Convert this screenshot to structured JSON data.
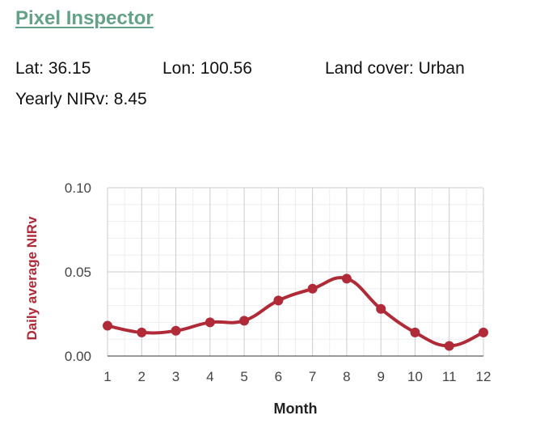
{
  "app": {
    "title": "Pixel Inspector"
  },
  "info": {
    "lat_label": "Lat: 36.15",
    "lon_label": "Lon: 100.56",
    "land_cover_label": "Land cover: Urban",
    "yearly_nirv_label": "Yearly NIRv: 8.45"
  },
  "chart_data": {
    "type": "line",
    "title": "",
    "xlabel": "Month",
    "ylabel": "Daily average NIRv",
    "x": [
      1,
      2,
      3,
      4,
      5,
      6,
      7,
      8,
      9,
      10,
      11,
      12
    ],
    "series": [
      {
        "name": "Daily average NIRv",
        "values": [
          0.018,
          0.014,
          0.015,
          0.02,
          0.021,
          0.033,
          0.04,
          0.046,
          0.028,
          0.014,
          0.006,
          0.014
        ]
      }
    ],
    "xlim": [
      1,
      12
    ],
    "ylim": [
      0,
      0.1
    ],
    "yticks": [
      "0.00",
      "0.05",
      "0.10"
    ],
    "xticks": [
      "1",
      "2",
      "3",
      "4",
      "5",
      "6",
      "7",
      "8",
      "9",
      "10",
      "11",
      "12"
    ],
    "grid": true,
    "line_color": "#b02a37",
    "ylabel_color": "#b02a37"
  }
}
